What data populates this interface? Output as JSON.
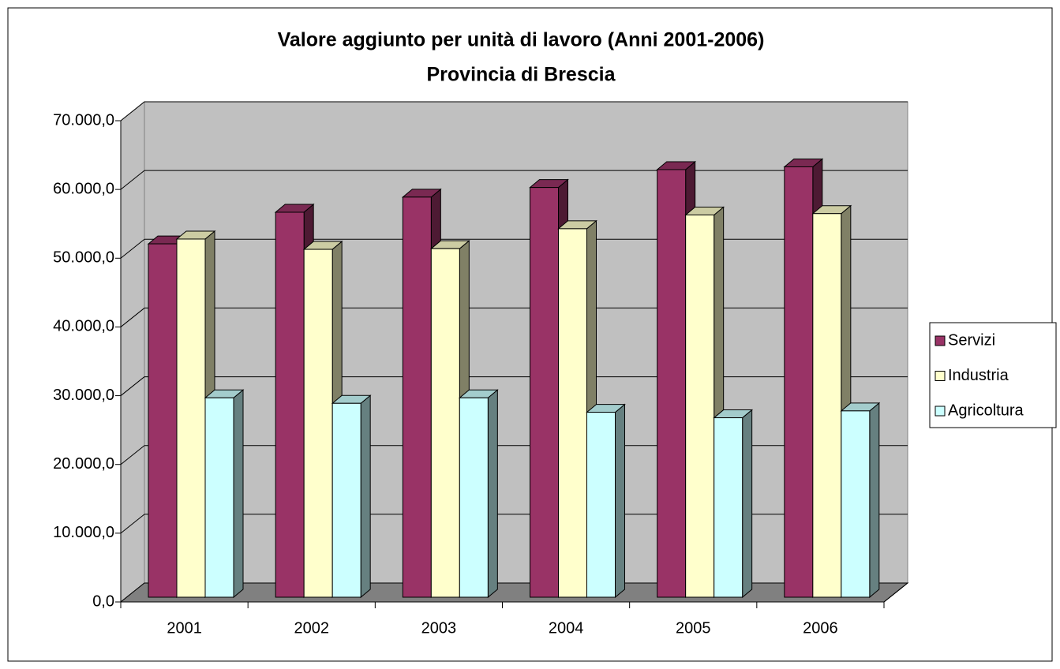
{
  "chart_data": {
    "type": "bar3d",
    "title": "Valore aggiunto per unità di lavoro (Anni 2001-2006)",
    "subtitle": "Provincia di Brescia",
    "categories": [
      "2001",
      "2002",
      "2003",
      "2004",
      "2005",
      "2006"
    ],
    "series": [
      {
        "name": "Servizi",
        "color": "#993366",
        "values": [
          51400,
          56000,
          58200,
          59600,
          62200,
          62600
        ]
      },
      {
        "name": "Industria",
        "color": "#ffffcc",
        "values": [
          52100,
          50600,
          50700,
          53600,
          55600,
          55800
        ]
      },
      {
        "name": "Agricoltura",
        "color": "#ccffff",
        "values": [
          29000,
          28200,
          29000,
          26900,
          26100,
          27100
        ]
      }
    ],
    "ylim": [
      0,
      70000
    ],
    "yticks": [
      {
        "value": 0,
        "label": "0,0"
      },
      {
        "value": 10000,
        "label": "10.000,0"
      },
      {
        "value": 20000,
        "label": "20.000,0"
      },
      {
        "value": 30000,
        "label": "30.000,0"
      },
      {
        "value": 40000,
        "label": "40.000,0"
      },
      {
        "value": 50000,
        "label": "50.000,0"
      },
      {
        "value": 60000,
        "label": "60.000,0"
      },
      {
        "value": 70000,
        "label": "70.000,0"
      }
    ],
    "grid": true,
    "legend": "right"
  }
}
